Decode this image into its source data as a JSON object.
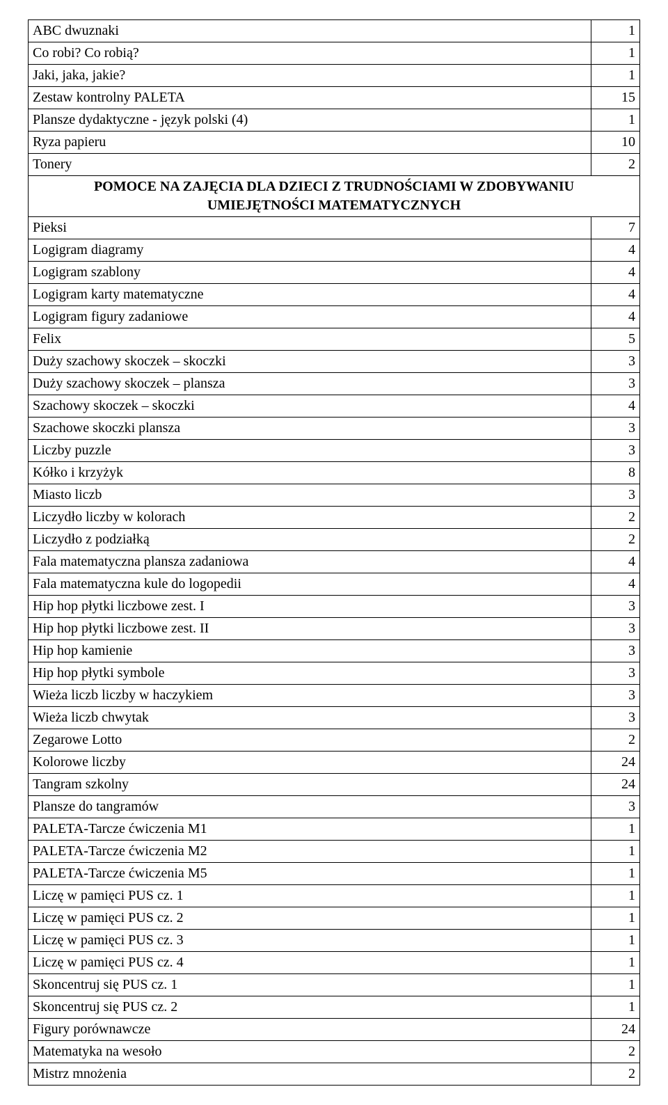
{
  "table": {
    "border_color": "#000000",
    "background_color": "#ffffff",
    "font_family": "Times New Roman",
    "font_size_pt": 15,
    "text_color": "#000000",
    "columns": [
      "name",
      "value"
    ],
    "col_widths": [
      "92%",
      "8%"
    ],
    "value_align": "right",
    "rows": [
      {
        "type": "data",
        "name": "ABC dwuznaki",
        "value": "1"
      },
      {
        "type": "data",
        "name": "Co robi? Co robią?",
        "value": "1"
      },
      {
        "type": "data",
        "name": "Jaki, jaka, jakie?",
        "value": "1"
      },
      {
        "type": "data",
        "name": "Zestaw kontrolny PALETA",
        "value": "15"
      },
      {
        "type": "data",
        "name": "Plansze dydaktyczne - język polski (4)",
        "value": "1"
      },
      {
        "type": "data",
        "name": "Ryza papieru",
        "value": "10"
      },
      {
        "type": "data",
        "name": "Tonery",
        "value": "2"
      },
      {
        "type": "section",
        "title_line1": "POMOCE NA ZAJĘCIA DLA DZIECI Z TRUDNOŚCIAMI W ZDOBYWANIU",
        "title_line2": "UMIEJĘTNOŚCI MATEMATYCZNYCH"
      },
      {
        "type": "data",
        "name": "Pieksi",
        "value": "7"
      },
      {
        "type": "data",
        "name": "Logigram diagramy",
        "value": "4"
      },
      {
        "type": "data",
        "name": "Logigram szablony",
        "value": "4"
      },
      {
        "type": "data",
        "name": "Logigram karty matematyczne",
        "value": "4"
      },
      {
        "type": "data",
        "name": "Logigram figury zadaniowe",
        "value": "4"
      },
      {
        "type": "data",
        "name": "Felix",
        "value": "5"
      },
      {
        "type": "data",
        "name": "Duży szachowy skoczek – skoczki",
        "value": "3"
      },
      {
        "type": "data",
        "name": "Duży szachowy skoczek – plansza",
        "value": "3"
      },
      {
        "type": "data",
        "name": "Szachowy skoczek – skoczki",
        "value": "4"
      },
      {
        "type": "data",
        "name": "Szachowe skoczki plansza",
        "value": "3"
      },
      {
        "type": "data",
        "name": "Liczby puzzle",
        "value": "3"
      },
      {
        "type": "data",
        "name": "Kółko i krzyżyk",
        "value": "8"
      },
      {
        "type": "data",
        "name": "Miasto liczb",
        "value": "3"
      },
      {
        "type": "data",
        "name": "Liczydło liczby w kolorach",
        "value": "2"
      },
      {
        "type": "data",
        "name": "Liczydło z podziałką",
        "value": "2"
      },
      {
        "type": "data",
        "name": "Fala matematyczna plansza zadaniowa",
        "value": "4"
      },
      {
        "type": "data",
        "name": "Fala matematyczna kule do logopedii",
        "value": "4"
      },
      {
        "type": "data",
        "name": "Hip hop płytki liczbowe zest. I",
        "value": "3"
      },
      {
        "type": "data",
        "name": "Hip hop płytki liczbowe zest. II",
        "value": "3"
      },
      {
        "type": "data",
        "name": "Hip hop kamienie",
        "value": "3"
      },
      {
        "type": "data",
        "name": "Hip hop płytki symbole",
        "value": "3"
      },
      {
        "type": "data",
        "name": "Wieża liczb liczby w haczykiem",
        "value": "3"
      },
      {
        "type": "data",
        "name": "Wieża liczb chwytak",
        "value": "3"
      },
      {
        "type": "data",
        "name": "Zegarowe Lotto",
        "value": "2"
      },
      {
        "type": "data",
        "name": "Kolorowe liczby",
        "value": "24"
      },
      {
        "type": "data",
        "name": "Tangram szkolny",
        "value": "24"
      },
      {
        "type": "data",
        "name": "Plansze do tangramów",
        "value": "3"
      },
      {
        "type": "data",
        "name": "PALETA-Tarcze ćwiczenia M1",
        "value": "1"
      },
      {
        "type": "data",
        "name": "PALETA-Tarcze ćwiczenia M2",
        "value": "1"
      },
      {
        "type": "data",
        "name": "PALETA-Tarcze ćwiczenia M5",
        "value": "1"
      },
      {
        "type": "data",
        "name": "Liczę w pamięci PUS cz. 1",
        "value": "1"
      },
      {
        "type": "data",
        "name": "Liczę w pamięci PUS cz. 2",
        "value": "1"
      },
      {
        "type": "data",
        "name": "Liczę w pamięci PUS cz. 3",
        "value": "1"
      },
      {
        "type": "data",
        "name": "Liczę w pamięci PUS cz. 4",
        "value": "1"
      },
      {
        "type": "data",
        "name": "Skoncentruj się PUS cz. 1",
        "value": "1"
      },
      {
        "type": "data",
        "name": "Skoncentruj się PUS cz. 2",
        "value": "1"
      },
      {
        "type": "data",
        "name": "Figury porównawcze",
        "value": "24"
      },
      {
        "type": "data",
        "name": "Matematyka na wesoło",
        "value": "2"
      },
      {
        "type": "data",
        "name": "Mistrz mnożenia",
        "value": "2"
      }
    ]
  }
}
